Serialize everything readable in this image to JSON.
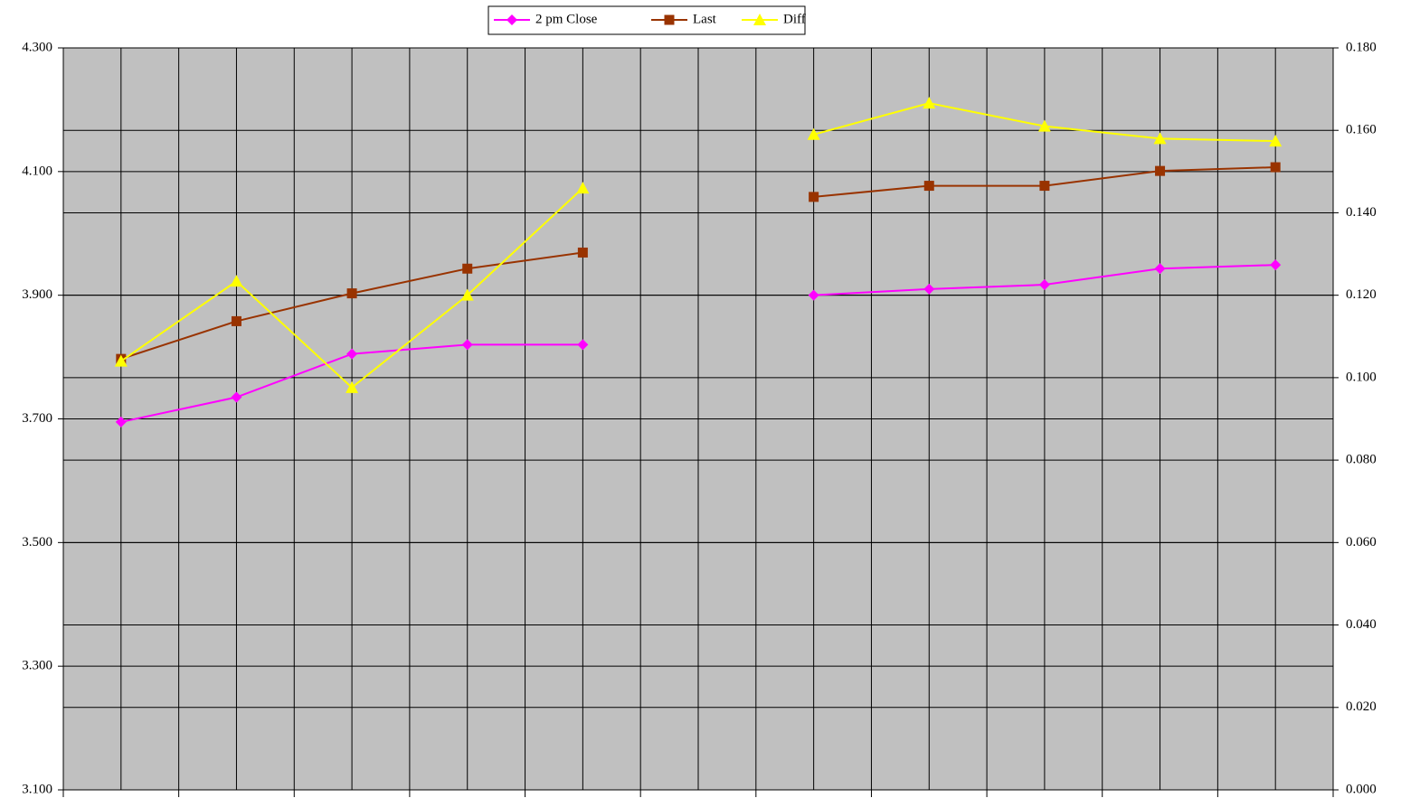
{
  "chart_data": {
    "type": "line",
    "categories": [
      null,
      null,
      null,
      null,
      null,
      null,
      null,
      null,
      null,
      null,
      null
    ],
    "series": [
      {
        "name": "2 pm  Close",
        "color": "#ff00ff",
        "marker": "diamond",
        "axis": "y",
        "values": [
          3.695,
          3.735,
          3.805,
          3.82,
          3.82,
          null,
          3.9,
          3.91,
          3.917,
          3.943,
          3.949
        ]
      },
      {
        "name": "Last",
        "color": "#993300",
        "marker": "square",
        "axis": "y",
        "values": [
          3.797,
          3.858,
          3.903,
          3.943,
          3.969,
          null,
          4.059,
          4.077,
          4.077,
          4.101,
          4.107
        ]
      },
      {
        "name": "Diff",
        "color": "#ffff00",
        "marker": "triangle",
        "axis": "y2",
        "values": [
          0.104,
          0.1234,
          0.0976,
          0.12,
          0.146,
          null,
          0.159,
          0.1666,
          0.161,
          0.158,
          0.1574
        ]
      }
    ],
    "ylim": [
      3.1,
      4.3
    ],
    "yticks": [
      {
        "value": 3.1,
        "label": "3.100"
      },
      {
        "value": 3.3,
        "label": "3.300"
      },
      {
        "value": 3.5,
        "label": "3.500"
      },
      {
        "value": 3.7,
        "label": "3.700"
      },
      {
        "value": 3.9,
        "label": "3.900"
      },
      {
        "value": 4.1,
        "label": "4.100"
      },
      {
        "value": 4.3,
        "label": "4.300"
      }
    ],
    "y2lim": [
      0,
      0.18
    ],
    "y2ticks": [
      {
        "value": 0,
        "label": "0.000"
      },
      {
        "value": 0.02,
        "label": "0.020"
      },
      {
        "value": 0.04,
        "label": "0.040"
      },
      {
        "value": 0.06,
        "label": "0.060"
      },
      {
        "value": 0.08,
        "label": "0.080"
      },
      {
        "value": 0.1,
        "label": "0.100"
      },
      {
        "value": 0.12,
        "label": "0.120"
      },
      {
        "value": 0.14,
        "label": "0.140"
      },
      {
        "value": 0.16,
        "label": "0.160"
      },
      {
        "value": 0.18,
        "label": "0.180"
      }
    ],
    "grid": true,
    "background": "#c0c0c0",
    "legend": "top"
  }
}
